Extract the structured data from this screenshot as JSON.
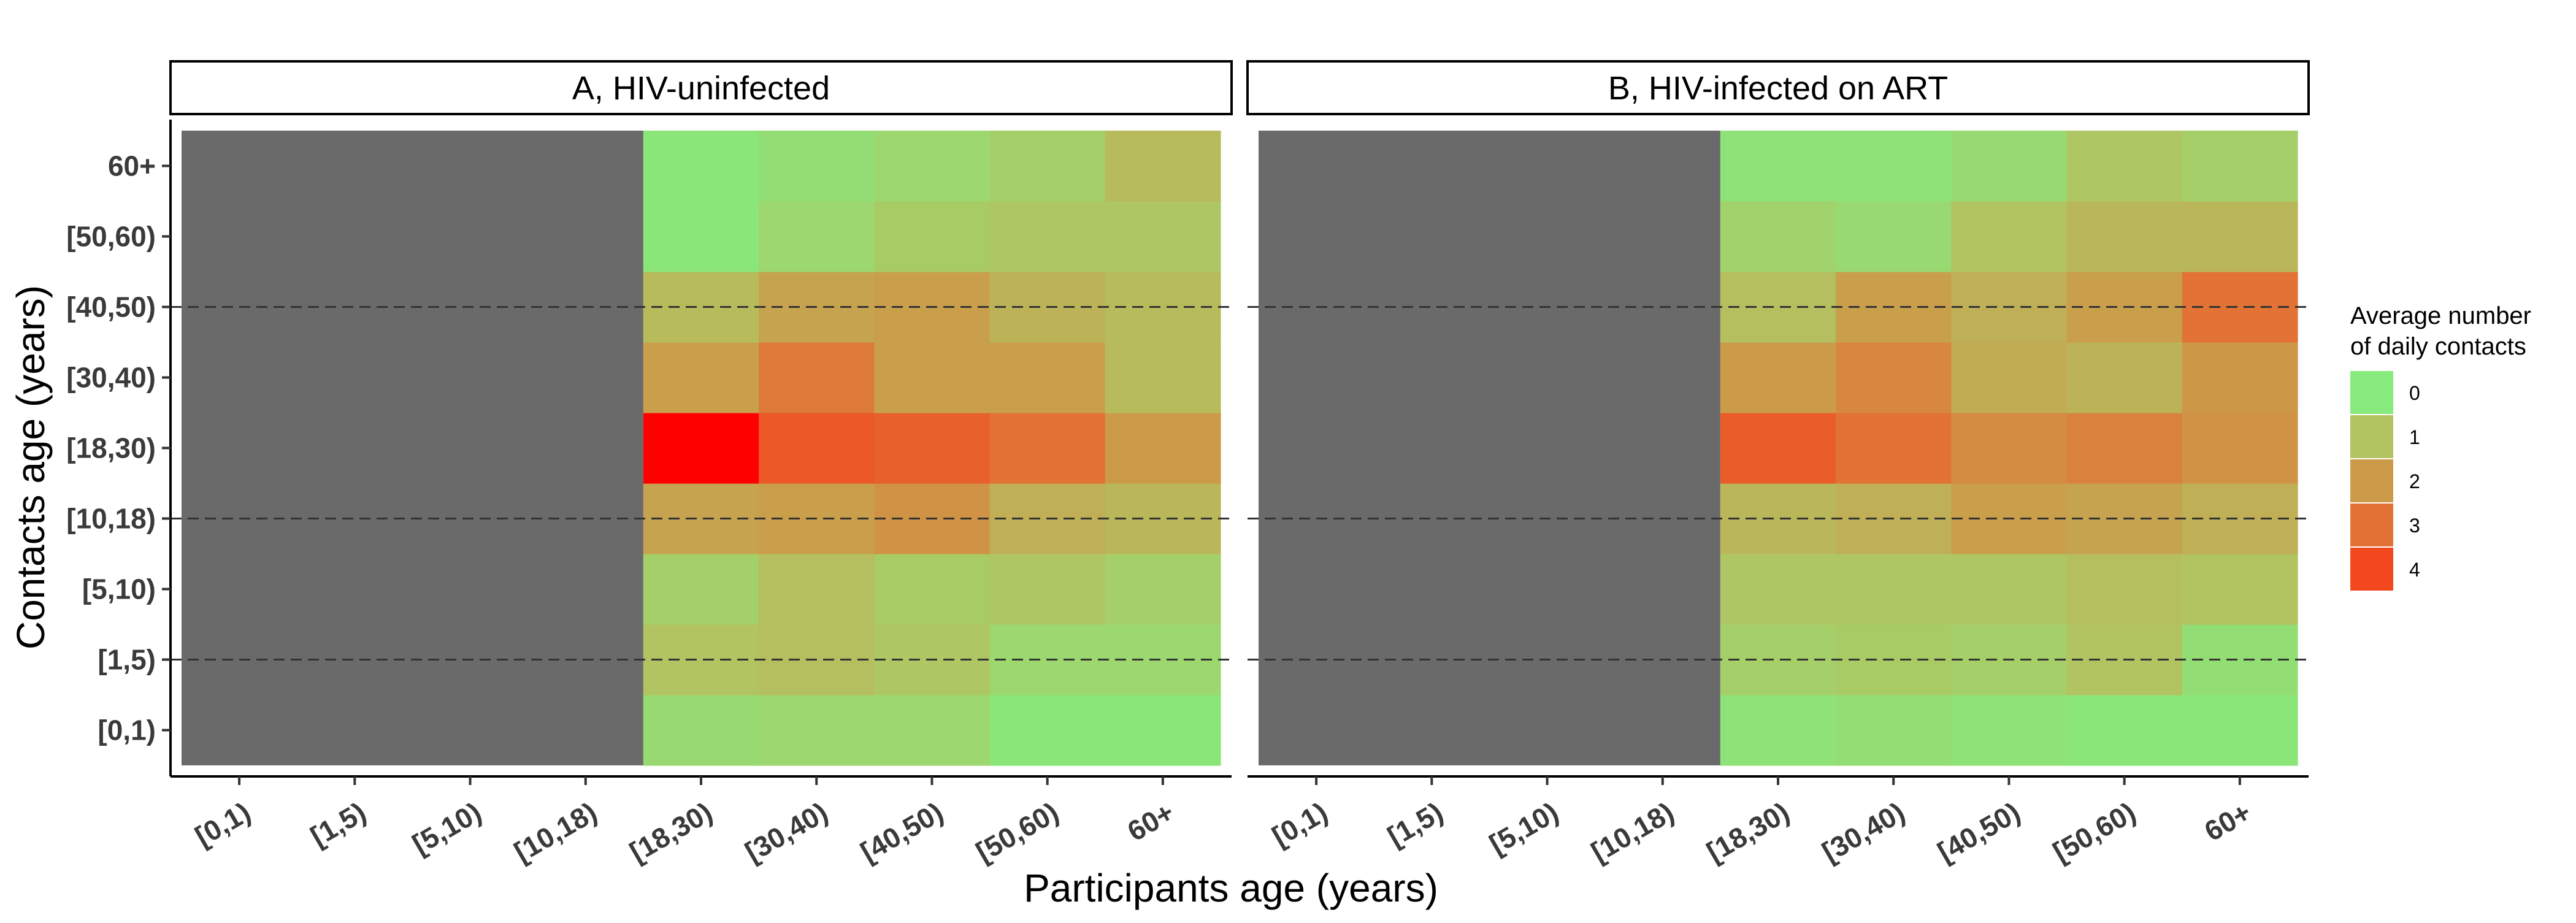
{
  "chart_data": {
    "type": "heatmap",
    "xlabel": "Participants age (years)",
    "ylabel": "Contacts age (years)",
    "x_categories": [
      "[0,1)",
      "[1,5)",
      "[5,10)",
      "[10,18)",
      "[18,30)",
      "[30,40)",
      "[40,50)",
      "[50,60)",
      "60+"
    ],
    "y_categories": [
      "[0,1)",
      "[1,5)",
      "[5,10)",
      "[10,18)",
      "[18,30)",
      "[30,40)",
      "[40,50)",
      "[50,60)",
      "60+"
    ],
    "missing_color": "#6a6a6a",
    "color_scale": {
      "stops": [
        {
          "value": 0,
          "color": "#86ea7c"
        },
        {
          "value": 1,
          "color": "#b2c361"
        },
        {
          "value": 2,
          "color": "#cb9b4a"
        },
        {
          "value": 3,
          "color": "#e27236"
        },
        {
          "value": 4,
          "color": "#f2471f"
        },
        {
          "value": 4.6,
          "color": "#ff0000"
        }
      ]
    },
    "legend": {
      "title_lines": [
        "Average number",
        "of daily contacts"
      ],
      "labels": [
        "0",
        "1",
        "2",
        "3",
        "4"
      ],
      "position": "right"
    },
    "reference_lines_y": [
      "[1,5)",
      "[10,18)",
      "[40,50)"
    ],
    "panels": [
      {
        "title": "A, HIV-uninfected",
        "values": [
          [
            null,
            null,
            null,
            null,
            0.4,
            0.5,
            0.5,
            0.1,
            0.1
          ],
          [
            null,
            null,
            null,
            null,
            1.0,
            1.1,
            0.9,
            0.5,
            0.5
          ],
          [
            null,
            null,
            null,
            null,
            0.7,
            1.1,
            0.8,
            0.9,
            0.7
          ],
          [
            null,
            null,
            null,
            null,
            1.8,
            1.9,
            2.2,
            1.5,
            1.3
          ],
          [
            null,
            null,
            null,
            null,
            4.6,
            3.6,
            3.4,
            3.0,
            2.0
          ],
          [
            null,
            null,
            null,
            null,
            1.9,
            2.8,
            1.9,
            1.9,
            1.2
          ],
          [
            null,
            null,
            null,
            null,
            1.2,
            1.8,
            1.9,
            1.4,
            1.2
          ],
          [
            null,
            null,
            null,
            null,
            0.1,
            0.5,
            0.8,
            0.9,
            0.9
          ],
          [
            null,
            null,
            null,
            null,
            0.1,
            0.3,
            0.5,
            0.7,
            1.2
          ]
        ]
      },
      {
        "title": "B, HIV-infected on ART",
        "values": [
          [
            null,
            null,
            null,
            null,
            0.2,
            0.3,
            0.2,
            0.1,
            0.1
          ],
          [
            null,
            null,
            null,
            null,
            0.7,
            0.8,
            0.7,
            1.0,
            0.3
          ],
          [
            null,
            null,
            null,
            null,
            0.9,
            0.9,
            0.9,
            1.1,
            1.0
          ],
          [
            null,
            null,
            null,
            null,
            1.3,
            1.5,
            1.9,
            1.8,
            1.5
          ],
          [
            null,
            null,
            null,
            null,
            3.5,
            3.0,
            2.4,
            2.6,
            2.2
          ],
          [
            null,
            null,
            null,
            null,
            2.0,
            2.5,
            1.6,
            1.4,
            2.1
          ],
          [
            null,
            null,
            null,
            null,
            1.1,
            1.9,
            1.5,
            1.9,
            3.0
          ],
          [
            null,
            null,
            null,
            null,
            0.6,
            0.4,
            1.0,
            1.3,
            1.3
          ],
          [
            null,
            null,
            null,
            null,
            0.2,
            0.2,
            0.4,
            0.9,
            0.7
          ]
        ]
      }
    ]
  }
}
